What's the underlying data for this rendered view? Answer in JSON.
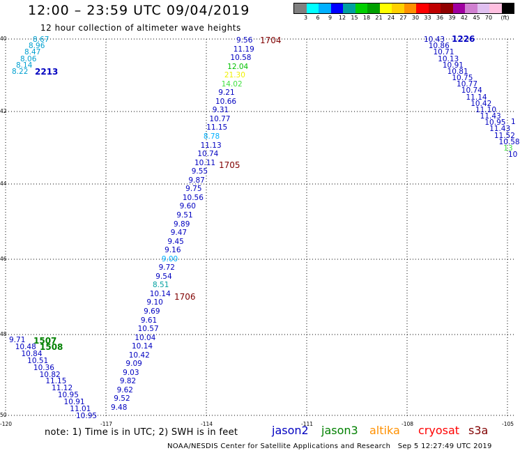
{
  "header": {
    "title": "12:00 – 23:59 UTC 09/04/2019",
    "subtitle": "12 hour collection of altimeter wave heights"
  },
  "legend": {
    "unit": "(ft)",
    "colors": [
      "#808080",
      "#00ffff",
      "#00b0ff",
      "#0000ff",
      "#00a0a0",
      "#00d000",
      "#00a000",
      "#ffff00",
      "#ffd000",
      "#ff9000",
      "#ff0000",
      "#c00000",
      "#900000",
      "#a000a0",
      "#d080d0",
      "#e0c0f0",
      "#ffc0e0",
      "#000000"
    ],
    "labels": [
      "3",
      "6",
      "9",
      "12",
      "15",
      "18",
      "21",
      "24",
      "27",
      "30",
      "33",
      "36",
      "39",
      "42",
      "45",
      "70"
    ]
  },
  "axes": {
    "lat_labels": [
      "40",
      "42",
      "44",
      "46",
      "48",
      "50"
    ],
    "lon_labels": [
      "-120",
      "-117",
      "-114",
      "-111",
      "-108",
      "-105"
    ]
  },
  "passes": [
    {
      "label": "1704",
      "color": "#800000"
    },
    {
      "label": "1705",
      "color": "#800000"
    },
    {
      "label": "1706",
      "color": "#800000"
    },
    {
      "label": "2213",
      "color": "#0000c0"
    },
    {
      "label": "1226",
      "color": "#0000c0"
    },
    {
      "label": "1507",
      "color": "#008000"
    },
    {
      "label": "1508",
      "color": "#008000"
    }
  ],
  "tracks": [
    {
      "name": "track-1704-1706",
      "color": "#0000c0",
      "values": [
        "9.56",
        "11.19",
        "10.58",
        "12.04",
        "21.30",
        "14.02",
        "9.21",
        "10.66",
        "9.31",
        "10.77",
        "11.15",
        "8.78",
        "11.13",
        "10.74",
        "10.11",
        "9.55",
        "9.87",
        "9.75",
        "10.56",
        "9.60",
        "9.51",
        "9.89",
        "9.47",
        "9.45",
        "9.16",
        "9.00",
        "9.72",
        "9.54",
        "8.51",
        "10.14",
        "9.10",
        "9.69",
        "9.61",
        "10.57",
        "10.04",
        "10.14",
        "10.42",
        "9.09",
        "9.03",
        "9.82",
        "9.62",
        "9.52",
        "9.48"
      ],
      "colors": {
        "3": "#00c000",
        "4": "#f0f000",
        "5": "#40e040",
        "11": "#00b0ff",
        "25": "#00b0ff",
        "28": "#00a0a0"
      }
    },
    {
      "name": "track-2213",
      "color": "#00a0d0",
      "values": [
        "8.67",
        "8.96",
        "8.47",
        "8.06",
        "8.14",
        "8.22"
      ]
    },
    {
      "name": "track-1226",
      "color": "#0000c0",
      "values": [
        "10.43",
        "10.86",
        "10.71",
        "10.13",
        "10.91",
        "10.81",
        "10.75",
        "10.77",
        "10.74",
        "11.14",
        "10.42",
        "11.10",
        "11.43",
        "10.95",
        "11.43",
        "11.52",
        "10.58",
        "13",
        "10"
      ],
      "colors": {
        "17": "#40e040"
      }
    },
    {
      "name": "track-1507",
      "color": "#0000c0",
      "values": [
        "9.71",
        "10.48",
        "10.84",
        "10.51",
        "10.36",
        "10.82",
        "11.15",
        "11.12",
        "10.95",
        "10.91",
        "11.01",
        "10.95"
      ]
    }
  ],
  "extra_label": "1",
  "footer": {
    "note": "note:  1) Time is in UTC;  2) SWH is in feet",
    "satellites": [
      {
        "name": "jason2",
        "color": "#0000c0"
      },
      {
        "name": "jason3",
        "color": "#008000"
      },
      {
        "name": "altika",
        "color": "#ff9000"
      },
      {
        "name": "cryosat",
        "color": "#ff0000"
      },
      {
        "name": "s3a",
        "color": "#800000"
      }
    ],
    "credit": "NOAA/NESDIS Center for Satellite Applications and Research",
    "timestamp": "Sep  5 12:27:49 UTC 2019"
  }
}
